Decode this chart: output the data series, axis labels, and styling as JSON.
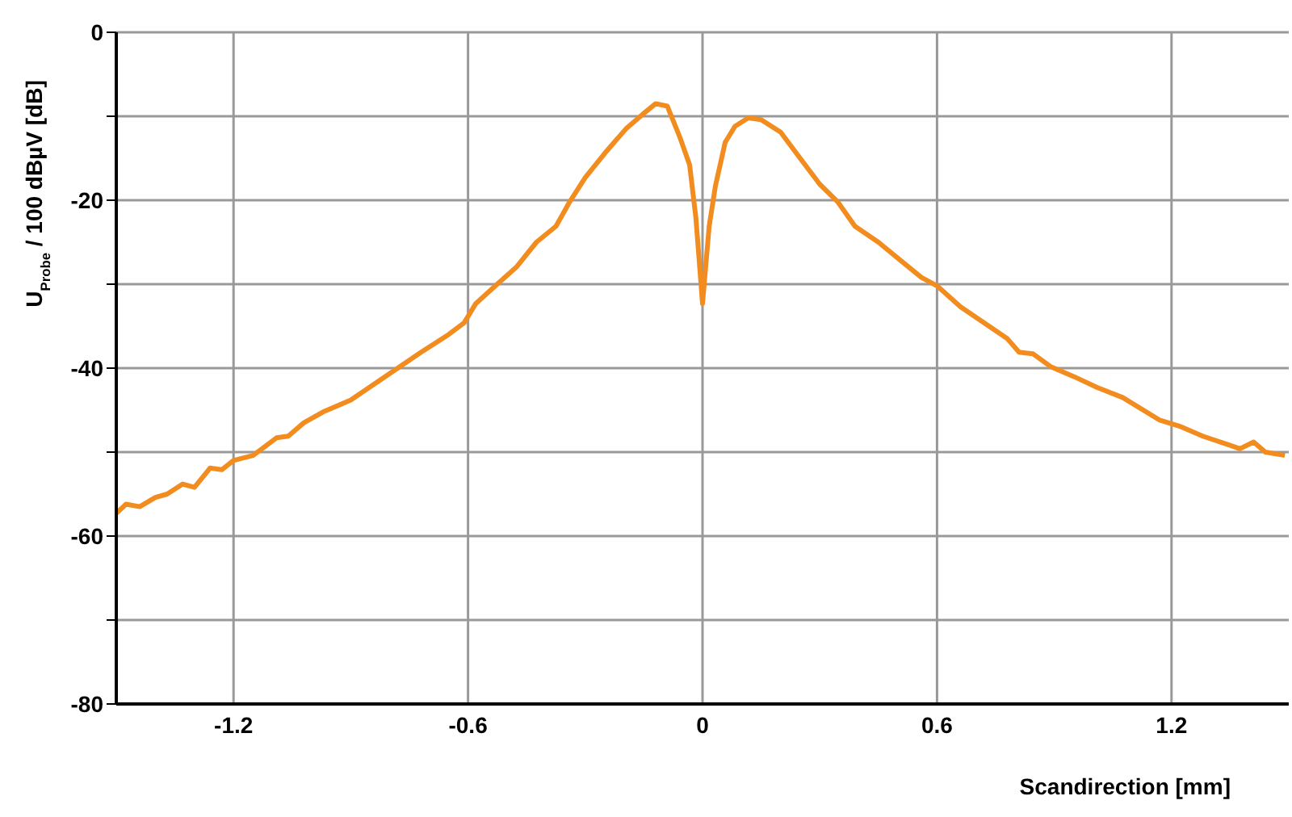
{
  "chart_data": {
    "type": "line",
    "xlabel": "Scandirection [mm]",
    "ylabel": "U$_{Probe}$ / 100 dBµV [dB]",
    "xlim": [
      -1.5,
      1.5
    ],
    "xticks": [
      -1.2,
      -0.6,
      0,
      0.6,
      1.2
    ],
    "ylim": [
      -80,
      0
    ],
    "yticks": [
      0,
      {
        "value": -10,
        "label": null
      },
      -20,
      {
        "value": -30,
        "label": null
      },
      -40,
      {
        "value": -50,
        "label": null
      },
      -60,
      {
        "value": -70,
        "label": null
      },
      -80
    ],
    "grid": true,
    "marker": "none",
    "line_style": "solid",
    "series": [
      {
        "color": "#f28c1e",
        "x": [
          -1.5,
          -1.475,
          -1.44,
          -1.4,
          -1.37,
          -1.33,
          -1.3,
          -1.26,
          -1.23,
          -1.2,
          -1.15,
          -1.09,
          -1.06,
          -1.02,
          -0.97,
          -0.9,
          -0.84,
          -0.78,
          -0.72,
          -0.65,
          -0.61,
          -0.58,
          -0.53,
          -0.475,
          -0.425,
          -0.375,
          -0.34,
          -0.3,
          -0.25,
          -0.196,
          -0.154,
          -0.12,
          -0.09,
          -0.058,
          -0.033,
          -0.017,
          0,
          0.017,
          0.033,
          0.058,
          0.083,
          0.117,
          0.15,
          0.2,
          0.24,
          0.3,
          0.346,
          0.39,
          0.45,
          0.51,
          0.56,
          0.6,
          0.66,
          0.72,
          0.78,
          0.81,
          0.846,
          0.89,
          0.95,
          1.01,
          1.075,
          1.17,
          1.22,
          1.28,
          1.35,
          1.375,
          1.41,
          1.44,
          1.49
        ],
        "values": [
          -57.3,
          -56.2,
          -56.5,
          -55.4,
          -55,
          -53.8,
          -54.2,
          -51.9,
          -52.1,
          -51,
          -50.4,
          -48.3,
          -48.1,
          -46.5,
          -45.2,
          -43.8,
          -41.9,
          -40,
          -38.1,
          -36,
          -34.6,
          -32.3,
          -30.2,
          -27.9,
          -25,
          -23.1,
          -20.2,
          -17.3,
          -14.4,
          -11.5,
          -9.8,
          -8.5,
          -8.8,
          -12.5,
          -15.8,
          -22.1,
          -32.3,
          -23.1,
          -18.3,
          -13.1,
          -11.2,
          -10.2,
          -10.4,
          -11.9,
          -14.4,
          -18.1,
          -20.2,
          -23.1,
          -25,
          -27.3,
          -29.2,
          -30.2,
          -32.7,
          -34.6,
          -36.5,
          -38.1,
          -38.3,
          -39.8,
          -41,
          -42.3,
          -43.5,
          -46.2,
          -46.9,
          -48.1,
          -49.2,
          -49.6,
          -48.8,
          -50,
          -50.4
        ]
      }
    ]
  }
}
